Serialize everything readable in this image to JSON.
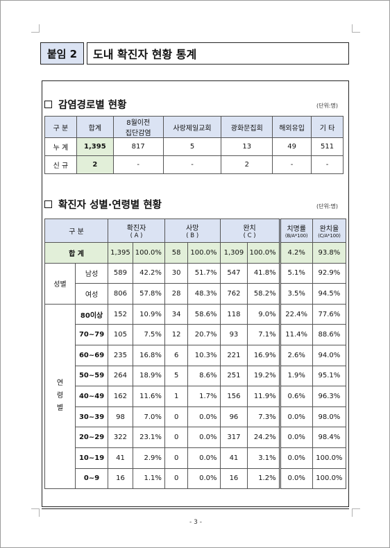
{
  "title": {
    "tag": "붙임 2",
    "text": "도내 확진자 현황 통계"
  },
  "section1": {
    "heading": "감염경로별 현황",
    "unit": "(단위:명)",
    "headers": [
      "구 분",
      "합계",
      "8월이전",
      "집단감염",
      "사랑제일교회",
      "광화문집회",
      "해외유입",
      "기 타"
    ],
    "rows": [
      {
        "label": "누 계",
        "total": "1,395",
        "cells": [
          "817",
          "5",
          "13",
          "49",
          "511"
        ]
      },
      {
        "label": "신 규",
        "total": "2",
        "cells": [
          "-",
          "-",
          "2",
          "-",
          "-"
        ]
      }
    ]
  },
  "section2": {
    "heading": "확진자 성별·연령별 현황",
    "unit": "(단위:명)",
    "headers": {
      "category": "구 분",
      "confirmed": "확진자",
      "confirmed_sub": "( A )",
      "deaths": "사망",
      "deaths_sub": "( B )",
      "recovered": "완치",
      "recovered_sub": "( C )",
      "fatality": "치명률",
      "fatality_sub": "(B/A*100)",
      "recovery": "완치율",
      "recovery_sub": "(C/A*100)"
    },
    "total": {
      "label": "합 계",
      "cells": [
        "1,395",
        "100.0%",
        "58",
        "100.0%",
        "1,309",
        "100.0%",
        "4.2%",
        "93.8%"
      ]
    },
    "gender_label": "성별",
    "gender_rows": [
      {
        "label": "남성",
        "cells": [
          "589",
          "42.2%",
          "30",
          "51.7%",
          "547",
          "41.8%",
          "5.1%",
          "92.9%"
        ]
      },
      {
        "label": "여성",
        "cells": [
          "806",
          "57.8%",
          "28",
          "48.3%",
          "762",
          "58.2%",
          "3.5%",
          "94.5%"
        ]
      }
    ],
    "age_label": [
      "연",
      "령",
      "별"
    ],
    "age_rows": [
      {
        "label": "80이상",
        "cells": [
          "152",
          "10.9%",
          "34",
          "58.6%",
          "118",
          "9.0%",
          "22.4%",
          "77.6%"
        ]
      },
      {
        "label": "70~79",
        "cells": [
          "105",
          "7.5%",
          "12",
          "20.7%",
          "93",
          "7.1%",
          "11.4%",
          "88.6%"
        ]
      },
      {
        "label": "60~69",
        "cells": [
          "235",
          "16.8%",
          "6",
          "10.3%",
          "221",
          "16.9%",
          "2.6%",
          "94.0%"
        ]
      },
      {
        "label": "50~59",
        "cells": [
          "264",
          "18.9%",
          "5",
          "8.6%",
          "251",
          "19.2%",
          "1.9%",
          "95.1%"
        ]
      },
      {
        "label": "40~49",
        "cells": [
          "162",
          "11.6%",
          "1",
          "1.7%",
          "156",
          "11.9%",
          "0.6%",
          "96.3%"
        ]
      },
      {
        "label": "30~39",
        "cells": [
          "98",
          "7.0%",
          "0",
          "0.0%",
          "96",
          "7.3%",
          "0.0%",
          "98.0%"
        ]
      },
      {
        "label": "20~29",
        "cells": [
          "322",
          "23.1%",
          "0",
          "0.0%",
          "317",
          "24.2%",
          "0.0%",
          "98.4%"
        ]
      },
      {
        "label": "10~19",
        "cells": [
          "41",
          "2.9%",
          "0",
          "0.0%",
          "41",
          "3.1%",
          "0.0%",
          "100.0%"
        ]
      },
      {
        "label": "0~9",
        "cells": [
          "16",
          "1.1%",
          "0",
          "0.0%",
          "16",
          "1.2%",
          "0.0%",
          "100.0%"
        ]
      }
    ]
  },
  "page_number": "- 3 -"
}
